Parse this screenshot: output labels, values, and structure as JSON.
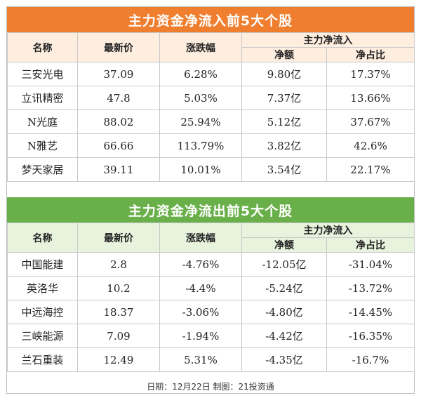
{
  "inflow": {
    "title": "主力资金净流入前5大个股",
    "headers": {
      "name": "名称",
      "price": "最新价",
      "change": "涨跌幅",
      "group": "主力净流入",
      "net": "净额",
      "ratio": "净占比"
    },
    "rows": [
      {
        "name": "三安光电",
        "price": "37.09",
        "change": "6.28%",
        "net": "9.80亿",
        "ratio": "17.37%"
      },
      {
        "name": "立讯精密",
        "price": "47.8",
        "change": "5.03%",
        "net": "7.37亿",
        "ratio": "13.66%"
      },
      {
        "name": "N光庭",
        "price": "88.02",
        "change": "25.94%",
        "net": "5.12亿",
        "ratio": "37.67%"
      },
      {
        "name": "N雅艺",
        "price": "66.66",
        "change": "113.79%",
        "net": "3.82亿",
        "ratio": "42.6%"
      },
      {
        "name": "梦天家居",
        "price": "39.11",
        "change": "10.01%",
        "net": "3.54亿",
        "ratio": "22.17%"
      }
    ]
  },
  "outflow": {
    "title": "主力资金净流出前5大个股",
    "headers": {
      "name": "名称",
      "price": "最新价",
      "change": "涨跌幅",
      "group": "主力净流入",
      "net": "净额",
      "ratio": "净占比"
    },
    "rows": [
      {
        "name": "中国能建",
        "price": "2.8",
        "change": "-4.76%",
        "net": "-12.05亿",
        "ratio": "-31.04%"
      },
      {
        "name": "英洛华",
        "price": "10.2",
        "change": "-4.4%",
        "net": "-5.24亿",
        "ratio": "-13.72%"
      },
      {
        "name": "中远海控",
        "price": "18.37",
        "change": "-3.06%",
        "net": "-4.80亿",
        "ratio": "-14.45%"
      },
      {
        "name": "三峡能源",
        "price": "7.09",
        "change": "-1.94%",
        "net": "-4.42亿",
        "ratio": "-16.35%"
      },
      {
        "name": "兰石重装",
        "price": "12.49",
        "change": "5.31%",
        "net": "-4.35亿",
        "ratio": "-16.7%"
      }
    ]
  },
  "footer": "日期：12月22日  制图：21投资通",
  "colors": {
    "inflow_banner": "#ef7f2e",
    "outflow_banner": "#6ab04a"
  }
}
